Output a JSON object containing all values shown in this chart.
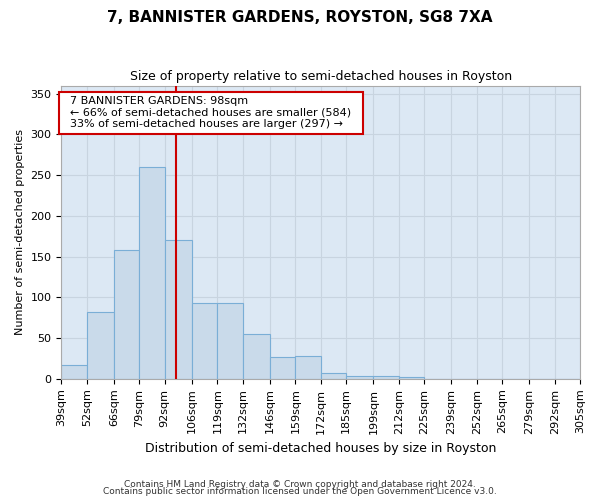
{
  "title": "7, BANNISTER GARDENS, ROYSTON, SG8 7XA",
  "subtitle": "Size of property relative to semi-detached houses in Royston",
  "xlabel": "Distribution of semi-detached houses by size in Royston",
  "ylabel": "Number of semi-detached properties",
  "footer_line1": "Contains HM Land Registry data © Crown copyright and database right 2024.",
  "footer_line2": "Contains public sector information licensed under the Open Government Licence v3.0.",
  "annotation_line1": "7 BANNISTER GARDENS: 98sqm",
  "annotation_line2": "← 66% of semi-detached houses are smaller (584)",
  "annotation_line3": "33% of semi-detached houses are larger (297) →",
  "property_sqm": 98,
  "bar_edges": [
    39,
    52,
    66,
    79,
    92,
    106,
    119,
    132,
    146,
    159,
    172,
    185,
    199,
    212,
    225,
    239,
    252,
    265,
    279,
    292,
    305
  ],
  "bar_values": [
    17,
    82,
    158,
    260,
    170,
    93,
    93,
    55,
    27,
    28,
    7,
    4,
    3,
    2,
    0,
    0,
    0,
    0,
    0,
    0
  ],
  "bar_color": "#c9daea",
  "bar_edge_color": "#7aaed6",
  "redline_color": "#cc0000",
  "annotation_box_edge_color": "#cc0000",
  "annotation_box_face_color": "#ffffff",
  "grid_color": "#c8d4e0",
  "background_color": "#dce8f0",
  "plot_bg_color": "#dce8f4",
  "ylim": [
    0,
    360
  ],
  "yticks": [
    0,
    50,
    100,
    150,
    200,
    250,
    300,
    350
  ],
  "title_fontsize": 11,
  "subtitle_fontsize": 9,
  "ylabel_fontsize": 8,
  "xlabel_fontsize": 9,
  "tick_fontsize": 8,
  "annotation_fontsize": 8,
  "footer_fontsize": 6.5
}
